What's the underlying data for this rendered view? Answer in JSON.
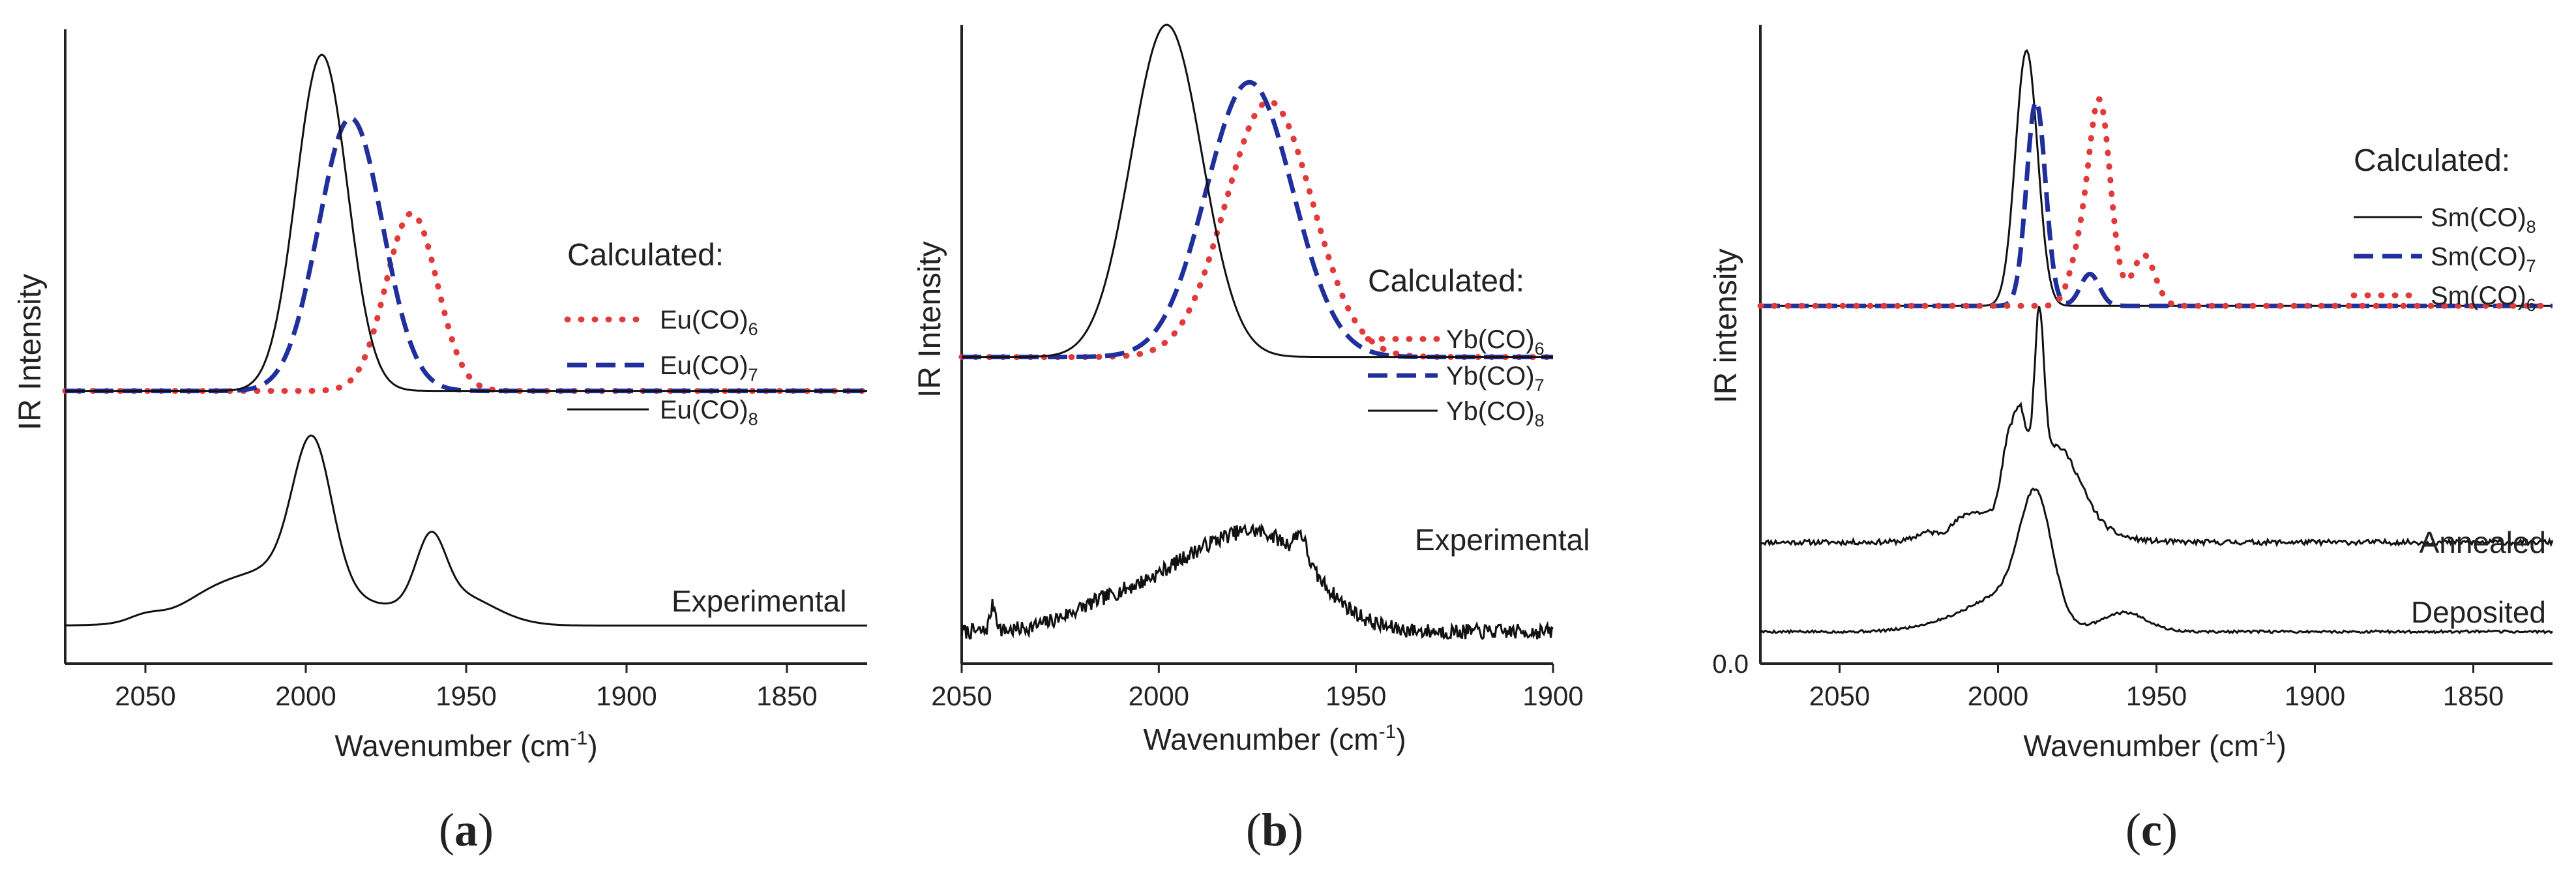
{
  "figure": {
    "background": "#ffffff"
  },
  "colors": {
    "axis": "#222222",
    "red": "#e03a3a",
    "blue": "#1f2f9c",
    "black": "#111111"
  },
  "chart_data": [
    {
      "type": "line",
      "panel_label": "a",
      "xlabel_main": "Wavenumber (cm",
      "xlabel_sup": "-1",
      "xlabel_tail": ")",
      "ylabel": "IR  Intensity",
      "xlim": [
        2075,
        1825
      ],
      "ticks": [
        2050,
        2000,
        1950,
        1900,
        1850
      ],
      "tick_labels": [
        "2050",
        "2000",
        "1950",
        "1900",
        "1850"
      ],
      "legend_title": "Calculated:",
      "series": [
        {
          "name": "Eu(CO)6",
          "label_main": "Eu(CO)",
          "label_sub": "6",
          "style": "dotted",
          "color": "red",
          "baseline": 0.43,
          "peaks": [
            [
              1967,
              0.28,
              8
            ]
          ]
        },
        {
          "name": "Eu(CO)7",
          "label_main": "Eu(CO)",
          "label_sub": "7",
          "style": "dashed",
          "color": "blue",
          "baseline": 0.43,
          "peaks": [
            [
              1986,
              0.43,
              10
            ]
          ]
        },
        {
          "name": "Eu(CO)8",
          "label_main": "Eu(CO)",
          "label_sub": "8",
          "style": "solid",
          "color": "black",
          "baseline": 0.43,
          "peaks": [
            [
              1995,
              0.53,
              8
            ]
          ]
        }
      ],
      "experimental": [
        {
          "label": "Experimental",
          "baseline": 0.06,
          "noise": 0,
          "seed": 3,
          "peaks": [
            [
              2050,
              0.01,
              5
            ],
            [
              1998,
              0.22,
              6
            ],
            [
              2008,
              0.09,
              20
            ],
            [
              1961,
              0.1,
              4.5
            ],
            [
              1954,
              0.05,
              12
            ],
            [
              2030,
              0.01,
              8
            ]
          ]
        }
      ]
    },
    {
      "type": "line",
      "panel_label": "b",
      "xlabel_main": "Wavenumber (cm",
      "xlabel_sup": "-1",
      "xlabel_tail": ")",
      "ylabel": "IR  Intensity",
      "xlim": [
        2050,
        1900
      ],
      "ticks": [
        2050,
        2000,
        1950,
        1900
      ],
      "tick_labels": [
        "2050",
        "2000",
        "1950",
        "1900"
      ],
      "legend_title": "Calculated:",
      "series": [
        {
          "name": "Yb(CO)6",
          "label_main": "Yb(CO)",
          "label_sub": "6",
          "style": "dotted",
          "color": "red",
          "baseline": 0.48,
          "peaks": [
            [
              1972,
              0.4,
              11
            ]
          ]
        },
        {
          "name": "Yb(CO)7",
          "label_main": "Yb(CO)",
          "label_sub": "7",
          "style": "dashed",
          "color": "blue",
          "baseline": 0.48,
          "peaks": [
            [
              1977,
              0.43,
              11
            ]
          ]
        },
        {
          "name": "Yb(CO)8",
          "label_main": "Yb(CO)",
          "label_sub": "8",
          "style": "solid",
          "color": "black",
          "baseline": 0.48,
          "peaks": [
            [
              1998,
              0.52,
              9
            ]
          ]
        }
      ],
      "experimental": [
        {
          "label": "Experimental",
          "baseline": 0.05,
          "noise": 0.012,
          "seed": 7,
          "peaks": [
            [
              1990,
              0.1,
              14
            ],
            [
              1970,
              0.11,
              12
            ],
            [
              1964,
              0.04,
              1.5
            ],
            [
              2042,
              0.04,
              0.8
            ],
            [
              2015,
              0.03,
              10
            ]
          ]
        }
      ]
    },
    {
      "type": "line",
      "panel_label": "c",
      "xlabel_main": "Wavenumber (cm",
      "xlabel_sup": "-1",
      "xlabel_tail": ")",
      "ylabel": "IR  intensity",
      "xlim": [
        2075,
        1825
      ],
      "ticks": [
        2050,
        2000,
        1950,
        1900,
        1850
      ],
      "tick_labels": [
        "2050",
        "2000",
        "1950",
        "1900",
        "1850"
      ],
      "y_zero_label": "0.0",
      "legend_title": "Calculated:",
      "series": [
        {
          "name": "Sm(CO)8",
          "label_main": "Sm(CO)",
          "label_sub": "8",
          "style": "solid",
          "color": "black",
          "baseline": 0.56,
          "peaks": [
            [
              1991,
              0.4,
              3.5
            ]
          ]
        },
        {
          "name": "Sm(CO)7",
          "label_main": "Sm(CO)",
          "label_sub": "7",
          "style": "dashed",
          "color": "blue",
          "baseline": 0.56,
          "peaks": [
            [
              1988,
              0.32,
              3
            ],
            [
              1971,
              0.05,
              3
            ]
          ]
        },
        {
          "name": "Sm(CO)6",
          "label_main": "Sm(CO)",
          "label_sub": "6",
          "style": "dotted",
          "color": "red",
          "baseline": 0.56,
          "peaks": [
            [
              1968,
              0.32,
              3.5
            ],
            [
              1954,
              0.08,
              3.5
            ],
            [
              1975,
              0.06,
              3
            ]
          ]
        }
      ],
      "experimental": [
        {
          "label": "Annealed",
          "baseline": 0.19,
          "noise": 0.004,
          "seed": 11,
          "peaks": [
            [
              1987,
              0.24,
              1.5
            ],
            [
              1993,
              0.12,
              2
            ],
            [
              1997,
              0.09,
              2
            ],
            [
              1981,
              0.1,
              7
            ],
            [
              1990,
              0.06,
              15
            ],
            [
              2010,
              0.02,
              4
            ],
            [
              2023,
              0.01,
              3
            ]
          ]
        },
        {
          "label": "Deposited",
          "baseline": 0.05,
          "noise": 0.002,
          "seed": 5,
          "peaks": [
            [
              1988,
              0.18,
              5
            ],
            [
              1995,
              0.05,
              10
            ],
            [
              1960,
              0.03,
              7
            ],
            [
              2010,
              0.02,
              12
            ]
          ]
        }
      ]
    }
  ]
}
